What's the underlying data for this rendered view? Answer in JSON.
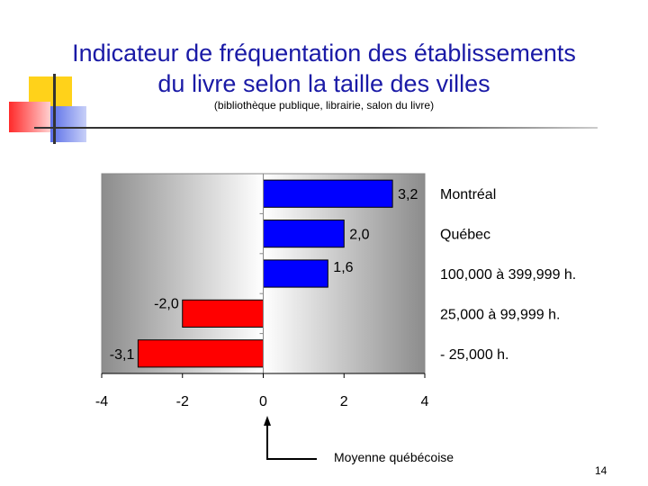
{
  "slide": {
    "title_line1": "Indicateur de fréquentation des établissements",
    "title_line2": "du livre selon la taille des villes",
    "subtitle": "(bibliothèque publique, librairie, salon du livre)",
    "footnote": "Moyenne québécoise",
    "page_number": "14",
    "title_color": "#1a1aa6"
  },
  "chart_data": {
    "type": "bar",
    "orientation": "horizontal",
    "categories": [
      "Montréal",
      "Québec",
      "100,000 à 399,999 h.",
      "25,000 à 99,999 h.",
      "- 25,000 h."
    ],
    "values": [
      3.2,
      2.0,
      1.6,
      -2.0,
      -3.1
    ],
    "data_labels": [
      "3,2",
      "2,0",
      "1,6",
      "-2,0",
      "-3,1"
    ],
    "x_ticks": [
      "-4",
      "-2",
      "0",
      "2",
      "4"
    ],
    "xlim": [
      -4,
      4
    ],
    "grid": false,
    "colors": {
      "positive": "#0000ff",
      "negative": "#ff0000"
    }
  }
}
